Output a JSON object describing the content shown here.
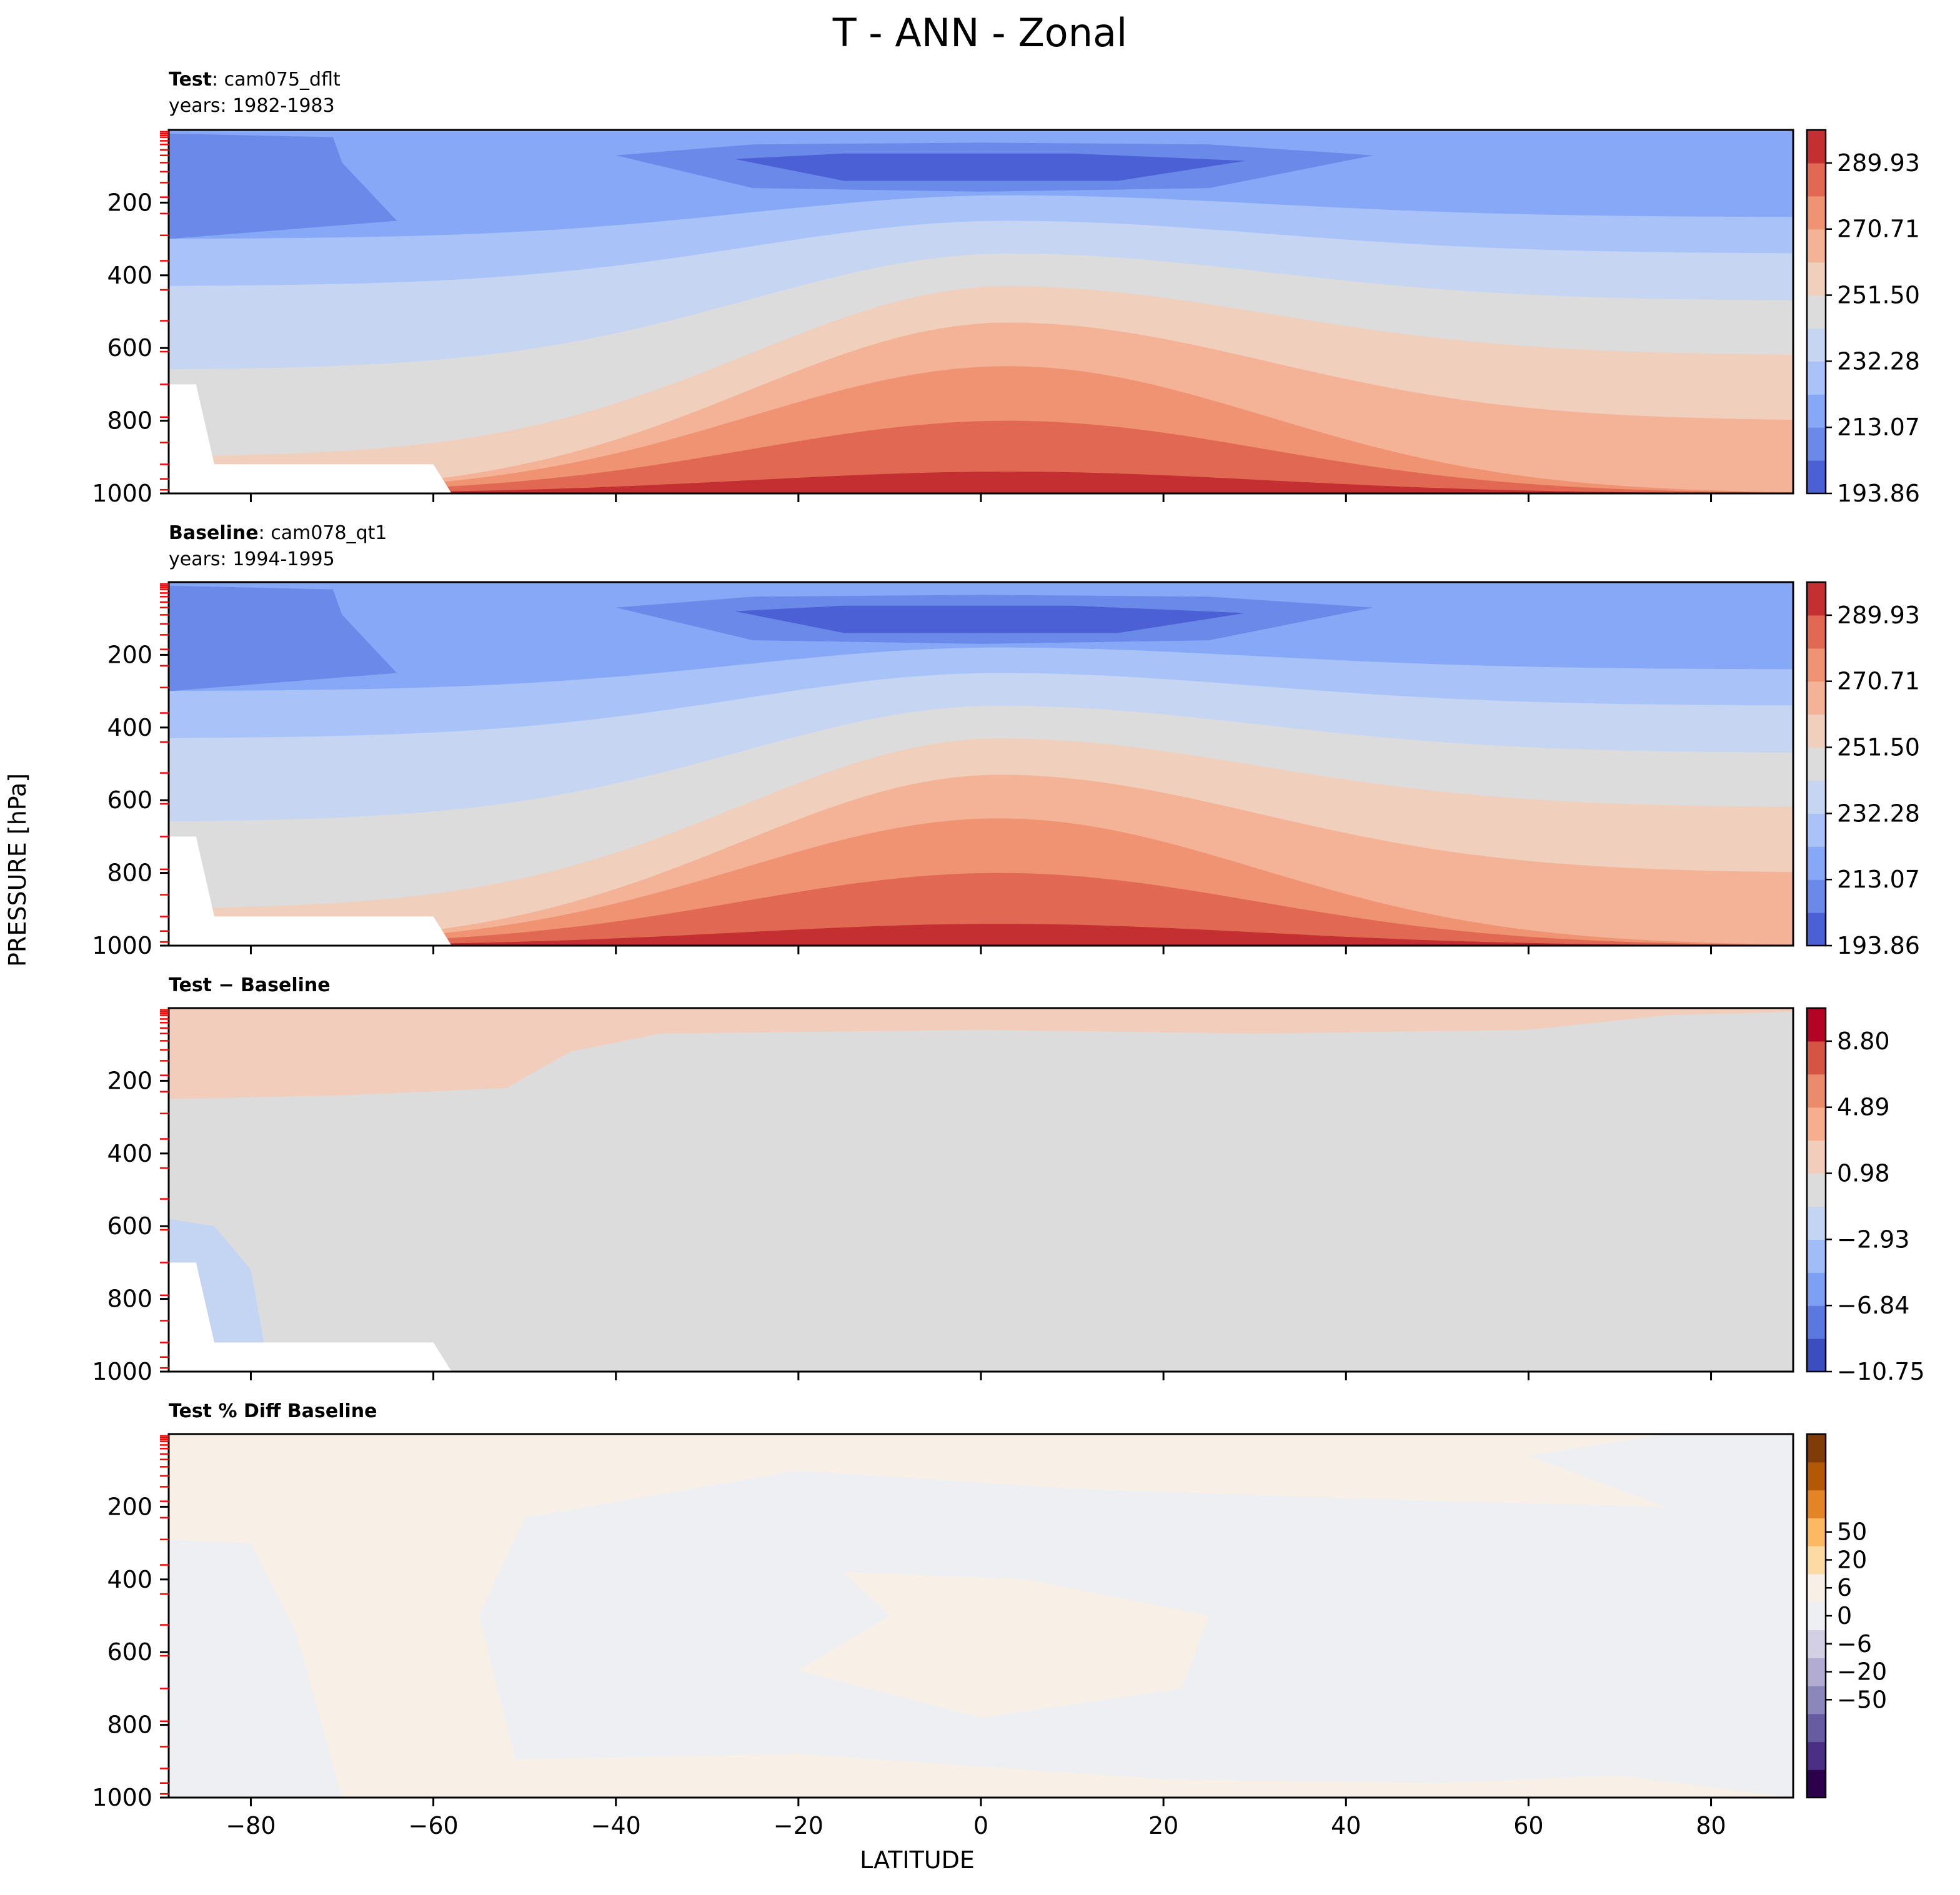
{
  "figure": {
    "title": "T - ANN - Zonal",
    "ylabel": "PRESSURE [hPa]",
    "xlabel": "LATITUDE"
  },
  "colors": {
    "t_levels": [
      "#4a60d4",
      "#6a89e8",
      "#86a8f6",
      "#a9c3f9",
      "#c6d6f2",
      "#dcdcdc",
      "#f0cfbc",
      "#f4b296",
      "#ef9372",
      "#e16852",
      "#c43032"
    ],
    "diff_levels": [
      "#3c4dc0",
      "#5a78df",
      "#7da0f4",
      "#a1bdf8",
      "#c4d5f3",
      "#dcdcdc",
      "#f2cdbb",
      "#f6ae8f",
      "#ea8b6b",
      "#d65444",
      "#b40426"
    ],
    "pct_levels": [
      "#2d004b",
      "#4b2f85",
      "#675ba1",
      "#8c87bb",
      "#b2abd2",
      "#d3d0e6",
      "#eeeff3",
      "#f8f0e6",
      "#fdd9a4",
      "#fdb863",
      "#e58426",
      "#b35806",
      "#7f3b08"
    ],
    "tick_marker": "#ff0000"
  },
  "panels": [
    {
      "title_bold": "Test",
      "title_rest": ": cam075_dflt",
      "years": "years: 1982-1983",
      "colorbar": [
        "193.86",
        "213.07",
        "232.28",
        "251.50",
        "270.71",
        "289.93"
      ]
    },
    {
      "title_bold": "Baseline",
      "title_rest": ": cam078_qt1",
      "years": "years: 1994-1995",
      "colorbar": [
        "193.86",
        "213.07",
        "232.28",
        "251.50",
        "270.71",
        "289.93"
      ]
    },
    {
      "title_bold": "Test − Baseline",
      "title_rest": "",
      "years": "",
      "colorbar": [
        "−10.75",
        "−6.84",
        "−2.93",
        "0.98",
        "4.89",
        "8.80"
      ]
    },
    {
      "title_bold": "Test % Diff Baseline",
      "title_rest": "",
      "years": "",
      "colorbar": [
        "−50",
        "−20",
        "−6",
        "0",
        "6",
        "20",
        "50"
      ]
    }
  ],
  "chart_data": {
    "type": "heatmap",
    "title": "T - ANN - Zonal",
    "xlabel": "LATITUDE",
    "ylabel": "PRESSURE [hPa]",
    "xlim": [
      -89,
      89
    ],
    "ylim": [
      1000,
      0
    ],
    "x_ticks": [
      "−80",
      "−60",
      "−40",
      "−20",
      "0",
      "20",
      "40",
      "60",
      "80"
    ],
    "y_ticks": [
      "200",
      "400",
      "600",
      "800",
      "1000"
    ],
    "temperature_levels": [
      193.86,
      213.07,
      232.28,
      251.5,
      270.71,
      289.93
    ],
    "difference_levels": [
      -10.75,
      -6.84,
      -2.93,
      0.98,
      4.89,
      8.8
    ],
    "percent_levels": [
      -50,
      -20,
      -6,
      0,
      6,
      20,
      50
    ],
    "series": [
      {
        "name": "Test",
        "approx_temperature_K": {
          "tropopause_equator_100hPa": 195,
          "surface_equator_1000hPa": 295,
          "surface_pole_1000hPa": 250
        }
      },
      {
        "name": "Baseline",
        "approx_temperature_K": {
          "tropopause_equator_100hPa": 195,
          "surface_equator_1000hPa": 295,
          "surface_pole_1000hPa": 250
        }
      },
      {
        "name": "Test − Baseline",
        "approx_difference_K": {
          "upper_levels": 2,
          "most_domain": 0
        }
      },
      {
        "name": "Test % Diff Baseline",
        "approx_percent": {
          "most_domain": 0
        }
      }
    ],
    "grid": false,
    "legend": "colorbar-right"
  }
}
